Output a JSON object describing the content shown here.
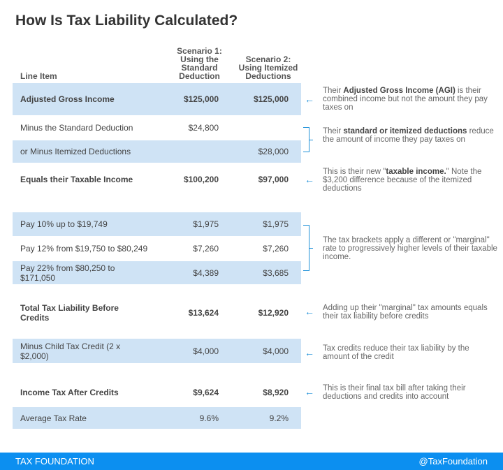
{
  "title": "How Is Tax Liability Calculated?",
  "columns": {
    "line_item": "Line Item",
    "scenario1": [
      "Scenario 1:",
      "Using the",
      "Standard",
      "Deduction"
    ],
    "scenario2": [
      "Scenario 2:",
      "Using Itemized",
      "Deductions"
    ]
  },
  "rows": [
    {
      "label": "Adjusted Gross Income",
      "s1": "$125,000",
      "s2": "$125,000"
    },
    {
      "label": "Minus the Standard Deduction",
      "s1": "$24,800",
      "s2": ""
    },
    {
      "label": "or Minus Itemized Deductions",
      "s1": "",
      "s2": "$28,000"
    },
    {
      "label": "Equals their Taxable Income",
      "s1": "$100,200",
      "s2": "$97,000"
    },
    {
      "label": "Pay 10% up to $19,749",
      "s1": "$1,975",
      "s2": "$1,975"
    },
    {
      "label": "Pay 12% from $19,750 to $80,249",
      "s1": "$7,260",
      "s2": "$7,260"
    },
    {
      "label": "Pay 22% from $80,250 to $171,050",
      "s1": "$4,389",
      "s2": "$3,685"
    },
    {
      "label": "Total Tax Liability Before Credits",
      "s1": "$13,624",
      "s2": "$12,920"
    },
    {
      "label": "Minus Child Tax Credit (2 x $2,000)",
      "s1": "$4,000",
      "s2": "$4,000"
    },
    {
      "label": "Income Tax After Credits",
      "s1": "$9,624",
      "s2": "$8,920"
    },
    {
      "label": "Average Tax Rate",
      "s1": "9.6%",
      "s2": "9.2%"
    }
  ],
  "notes": {
    "agi": {
      "pre": "Their ",
      "bold": "Adjusted Gross Income (AGI)",
      "post": " is their combined income but not the amount they pay taxes on"
    },
    "deductions": {
      "pre": "Their ",
      "bold": "standard or itemized deductions",
      "post": " reduce the amount of income they pay taxes on"
    },
    "taxable": {
      "pre": "This is their new \"",
      "bold": "taxable income.",
      "post": "\" Note the $3,200 difference because of the itemized deductions"
    },
    "brackets": "The tax brackets apply a different or \"marginal\" rate to progressively higher levels of their taxable income.",
    "total": "Adding up their \"marginal\" tax amounts equals their tax liability before credits",
    "credits": "Tax credits reduce their tax liability by the amount of the credit",
    "final": "This is their final tax bill after taking their deductions and credits into account"
  },
  "arrow_glyph": "←",
  "accent_color": "#1e90d8",
  "footer": {
    "brand": "TAX FOUNDATION",
    "handle": "@TaxFoundation"
  }
}
